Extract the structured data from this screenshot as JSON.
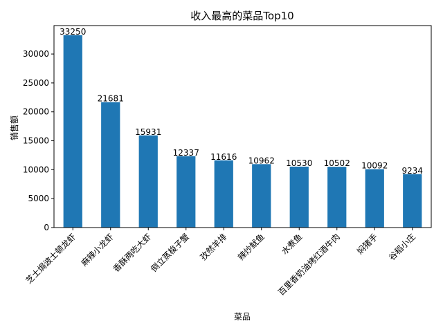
{
  "chart_data": {
    "type": "bar",
    "title": "收入最高的菜品Top10",
    "xlabel": "菜品",
    "ylabel": "销售额",
    "categories": [
      "芝士焗波士顿龙虾",
      "麻辣小龙虾",
      "香酥两吃大虾",
      "倒立蒸梭子蟹",
      "孜然羊排",
      "辣炒鱿鱼",
      "水煮鱼",
      "百里香奶油烤红酒牛肉",
      "焖猪手",
      "谷稻小庄"
    ],
    "values": [
      33250,
      21681,
      15931,
      12337,
      11616,
      10962,
      10530,
      10502,
      10092,
      9234
    ],
    "ylim": [
      0,
      34912
    ],
    "yticks": [
      0,
      5000,
      10000,
      15000,
      20000,
      25000,
      30000
    ],
    "bar_color": "#1f77b4",
    "grid": false,
    "legend": "none"
  }
}
